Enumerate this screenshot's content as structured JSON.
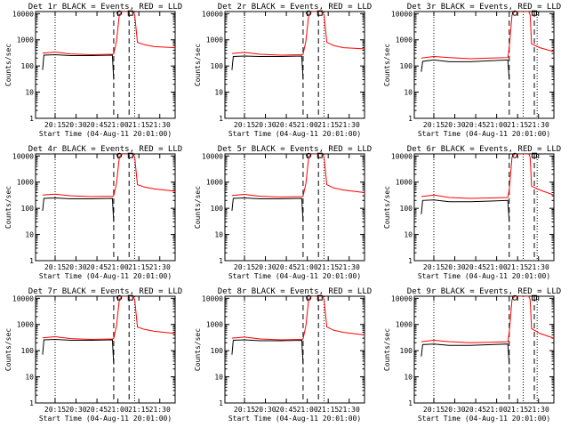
{
  "common": {
    "type": "line",
    "ylabel": "Counts/sec",
    "xlabel": "Start Time (04-Aug-11 20:01:00)",
    "x_tick_labels": [
      "20:15",
      "20:30",
      "20:45",
      "21:00",
      "21:15",
      "21:30"
    ],
    "x_ticks_minutes": [
      14,
      29,
      44,
      59,
      74,
      89
    ],
    "xlim_minutes": [
      0,
      100
    ],
    "y_scale": "log",
    "ylim": [
      1,
      12000
    ],
    "y_tick_labels": [
      "1",
      "10",
      "100",
      "1000",
      "10000"
    ],
    "y_ticks": [
      1,
      10,
      100,
      1000,
      10000
    ],
    "colors": {
      "events": "#000000",
      "lld": "#ff0000"
    }
  },
  "chart_data": [
    {
      "title": "Det 1r BLACK = Events, RED = LLD",
      "series": [
        {
          "name": "Events",
          "x": [
            5,
            6,
            14,
            25,
            40,
            55,
            56
          ],
          "y": [
            70,
            260,
            270,
            250,
            250,
            260,
            30
          ]
        },
        {
          "name": "LLD",
          "x": [
            5,
            14,
            25,
            40,
            55,
            56,
            58,
            60,
            62,
            66,
            70,
            71,
            73,
            78,
            85,
            100
          ],
          "y": [
            310,
            340,
            290,
            270,
            280,
            290,
            900,
            9000,
            12000,
            12000,
            12000,
            9000,
            800,
            650,
            550,
            500
          ]
        }
      ],
      "dotted_x": [
        14,
        71
      ],
      "dashed_x": [
        56,
        67
      ],
      "markers": [
        {
          "shape": "circle",
          "x": 60,
          "y": 10500
        },
        {
          "shape": "square",
          "x": 68,
          "y": 10500
        }
      ]
    },
    {
      "title": "Det 2r BLACK = Events, RED = LLD",
      "series": [
        {
          "name": "Events",
          "x": [
            5,
            6,
            14,
            25,
            40,
            55,
            56
          ],
          "y": [
            70,
            230,
            240,
            230,
            230,
            240,
            30
          ]
        },
        {
          "name": "LLD",
          "x": [
            5,
            14,
            25,
            40,
            55,
            56,
            58,
            60,
            62,
            66,
            70,
            71,
            73,
            78,
            85,
            100
          ],
          "y": [
            300,
            330,
            280,
            260,
            270,
            280,
            900,
            9000,
            12000,
            12000,
            12000,
            9000,
            800,
            600,
            500,
            450
          ]
        }
      ],
      "dotted_x": [
        14,
        71
      ],
      "dashed_x": [
        56,
        67
      ],
      "markers": [
        {
          "shape": "circle",
          "x": 60,
          "y": 10500
        },
        {
          "shape": "square",
          "x": 68,
          "y": 10500
        }
      ]
    },
    {
      "title": "Det 3r BLACK = Events, RED = LLD",
      "series": [
        {
          "name": "Events",
          "x": [
            5,
            6,
            14,
            25,
            40,
            55,
            67,
            68
          ],
          "y": [
            60,
            150,
            170,
            145,
            145,
            160,
            170,
            30
          ]
        },
        {
          "name": "LLD",
          "x": [
            5,
            14,
            25,
            40,
            55,
            67,
            68,
            70,
            72,
            74,
            78,
            82,
            83,
            84,
            90,
            100
          ],
          "y": [
            200,
            230,
            210,
            190,
            200,
            210,
            500,
            9000,
            12000,
            12000,
            12000,
            12000,
            9000,
            700,
            500,
            350
          ]
        }
      ],
      "dotted_x": [
        14,
        78,
        88
      ],
      "dashed_x": [
        68,
        86
      ],
      "markers": [
        {
          "shape": "circle",
          "x": 72,
          "y": 10500
        },
        {
          "shape": "square",
          "x": 86,
          "y": 10500
        }
      ]
    },
    {
      "title": "Det 4r BLACK = Events, RED = LLD",
      "series": [
        {
          "name": "Events",
          "x": [
            5,
            6,
            14,
            25,
            40,
            55,
            56
          ],
          "y": [
            80,
            240,
            250,
            230,
            230,
            240,
            30
          ]
        },
        {
          "name": "LLD",
          "x": [
            5,
            14,
            25,
            40,
            55,
            56,
            58,
            60,
            62,
            66,
            70,
            71,
            73,
            78,
            85,
            100
          ],
          "y": [
            320,
            350,
            300,
            280,
            290,
            300,
            900,
            9000,
            12000,
            12000,
            12000,
            9000,
            800,
            650,
            550,
            450
          ]
        }
      ],
      "dotted_x": [
        14,
        71
      ],
      "dashed_x": [
        56,
        67
      ],
      "markers": [
        {
          "shape": "circle",
          "x": 60,
          "y": 10500
        },
        {
          "shape": "square",
          "x": 68,
          "y": 10500
        }
      ]
    },
    {
      "title": "Det 5r BLACK = Events, RED = LLD",
      "series": [
        {
          "name": "Events",
          "x": [
            5,
            6,
            14,
            25,
            40,
            55,
            56
          ],
          "y": [
            80,
            240,
            250,
            230,
            230,
            240,
            30
          ]
        },
        {
          "name": "LLD",
          "x": [
            5,
            14,
            25,
            40,
            55,
            56,
            58,
            60,
            62,
            66,
            70,
            71,
            73,
            78,
            85,
            100
          ],
          "y": [
            310,
            340,
            290,
            270,
            280,
            290,
            900,
            9000,
            12000,
            12000,
            12000,
            9000,
            800,
            600,
            500,
            400
          ]
        }
      ],
      "dotted_x": [
        14,
        71
      ],
      "dashed_x": [
        56,
        67
      ],
      "markers": [
        {
          "shape": "circle",
          "x": 60,
          "y": 10500
        },
        {
          "shape": "square",
          "x": 68,
          "y": 10500
        }
      ]
    },
    {
      "title": "Det 6r BLACK = Events, RED = LLD",
      "series": [
        {
          "name": "Events",
          "x": [
            5,
            6,
            14,
            25,
            40,
            55,
            67,
            68
          ],
          "y": [
            60,
            200,
            210,
            180,
            180,
            190,
            200,
            30
          ]
        },
        {
          "name": "LLD",
          "x": [
            5,
            14,
            25,
            40,
            55,
            67,
            68,
            70,
            72,
            74,
            78,
            82,
            83,
            84,
            90,
            100
          ],
          "y": [
            280,
            320,
            260,
            240,
            250,
            260,
            500,
            9000,
            12000,
            12000,
            12000,
            12000,
            9000,
            700,
            500,
            320
          ]
        }
      ],
      "dotted_x": [
        14,
        78,
        88
      ],
      "dashed_x": [
        68,
        86
      ],
      "markers": [
        {
          "shape": "circle",
          "x": 72,
          "y": 10500
        },
        {
          "shape": "square",
          "x": 86,
          "y": 10500
        }
      ]
    },
    {
      "title": "Det 7r BLACK = Events, RED = LLD",
      "series": [
        {
          "name": "Events",
          "x": [
            5,
            6,
            14,
            25,
            40,
            55,
            56
          ],
          "y": [
            70,
            260,
            270,
            250,
            250,
            260,
            30
          ]
        },
        {
          "name": "LLD",
          "x": [
            5,
            14,
            25,
            40,
            55,
            56,
            58,
            60,
            62,
            66,
            70,
            71,
            73,
            78,
            85,
            100
          ],
          "y": [
            310,
            340,
            290,
            270,
            280,
            290,
            900,
            9000,
            12000,
            12000,
            12000,
            9000,
            800,
            650,
            550,
            450
          ]
        }
      ],
      "dotted_x": [
        14,
        71
      ],
      "dashed_x": [
        56,
        67
      ],
      "markers": [
        {
          "shape": "circle",
          "x": 60,
          "y": 10500
        },
        {
          "shape": "square",
          "x": 68,
          "y": 10500
        }
      ]
    },
    {
      "title": "Det 8r BLACK = Events, RED = LLD",
      "series": [
        {
          "name": "Events",
          "x": [
            5,
            6,
            14,
            25,
            40,
            55,
            56
          ],
          "y": [
            70,
            250,
            260,
            240,
            240,
            250,
            30
          ]
        },
        {
          "name": "LLD",
          "x": [
            5,
            14,
            25,
            40,
            55,
            56,
            58,
            60,
            62,
            66,
            70,
            71,
            73,
            78,
            85,
            100
          ],
          "y": [
            300,
            330,
            280,
            260,
            270,
            280,
            900,
            9000,
            12000,
            12000,
            12000,
            9000,
            800,
            600,
            500,
            400
          ]
        }
      ],
      "dotted_x": [
        14,
        71
      ],
      "dashed_x": [
        56,
        67
      ],
      "markers": [
        {
          "shape": "circle",
          "x": 60,
          "y": 10500
        },
        {
          "shape": "square",
          "x": 68,
          "y": 10500
        }
      ]
    },
    {
      "title": "Det 9r BLACK = Events, RED = LLD",
      "series": [
        {
          "name": "Events",
          "x": [
            5,
            6,
            14,
            25,
            40,
            55,
            67,
            68
          ],
          "y": [
            60,
            170,
            180,
            160,
            160,
            170,
            180,
            30
          ]
        },
        {
          "name": "LLD",
          "x": [
            5,
            14,
            25,
            40,
            55,
            67,
            68,
            70,
            72,
            74,
            78,
            82,
            83,
            84,
            90,
            100
          ],
          "y": [
            220,
            250,
            220,
            200,
            210,
            220,
            500,
            9000,
            12000,
            12000,
            12000,
            12000,
            9000,
            700,
            450,
            300
          ]
        }
      ],
      "dotted_x": [
        14,
        78,
        88
      ],
      "dashed_x": [
        68,
        86
      ],
      "markers": [
        {
          "shape": "circle",
          "x": 72,
          "y": 10500
        },
        {
          "shape": "square",
          "x": 86,
          "y": 10500
        }
      ]
    }
  ]
}
